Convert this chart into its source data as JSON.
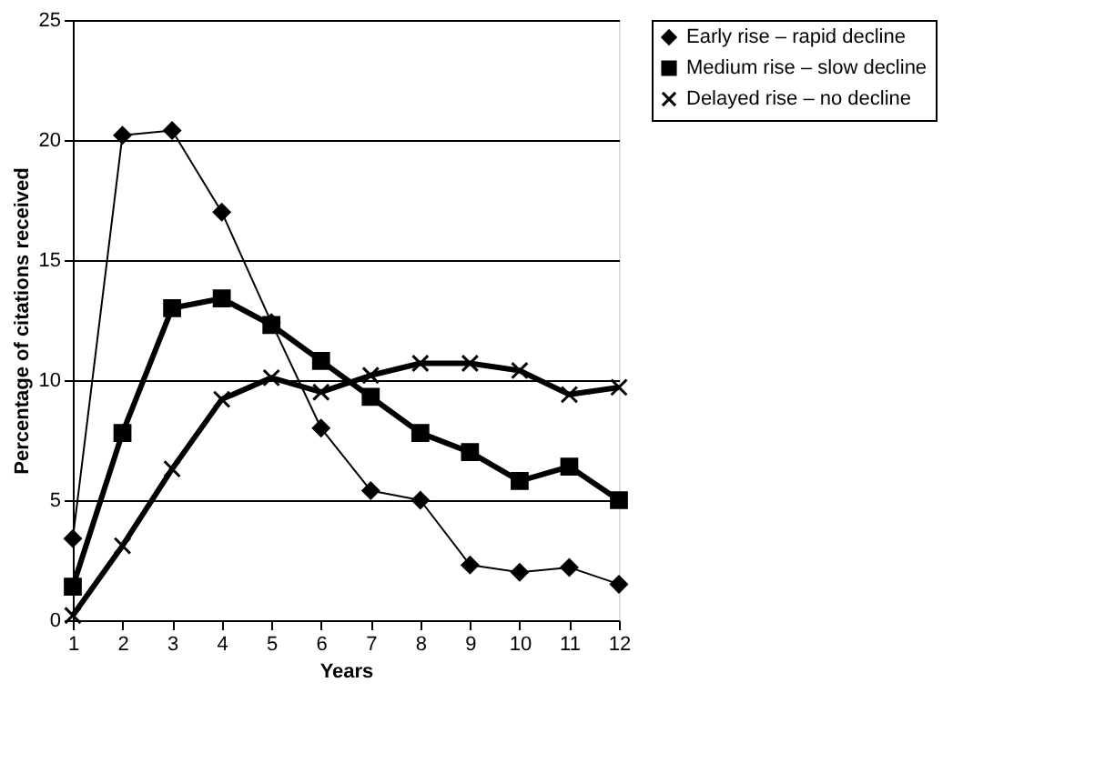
{
  "chart_data": {
    "type": "line",
    "xlabel": "Years",
    "ylabel": "Percentage of citations received",
    "x": [
      1,
      2,
      3,
      4,
      5,
      6,
      7,
      8,
      9,
      10,
      11,
      12
    ],
    "xlim": [
      1,
      12
    ],
    "xticks": [
      1,
      2,
      3,
      4,
      5,
      6,
      7,
      8,
      9,
      10,
      11,
      12
    ],
    "ylim": [
      0,
      25
    ],
    "yticks": [
      0,
      5,
      10,
      15,
      20,
      25
    ],
    "grid": "y",
    "legend": "right",
    "line_style": "solid",
    "series": [
      {
        "name": "Early rise – rapid decline",
        "color": "#000000",
        "marker": "diamond",
        "values": [
          3.4,
          20.2,
          20.4,
          17.0,
          12.4,
          8.0,
          5.4,
          5.0,
          2.3,
          2.0,
          2.2,
          1.5
        ]
      },
      {
        "name": "Medium rise – slow decline",
        "color": "#000000",
        "marker": "square",
        "values": [
          1.4,
          7.8,
          13.0,
          13.4,
          12.3,
          10.8,
          9.3,
          7.8,
          7.0,
          5.8,
          6.4,
          5.0
        ]
      },
      {
        "name": "Delayed rise – no decline",
        "color": "#000000",
        "marker": "cross",
        "values": [
          0.2,
          3.1,
          6.3,
          9.2,
          10.1,
          9.5,
          10.2,
          10.7,
          10.7,
          10.4,
          9.4,
          9.7
        ]
      }
    ]
  }
}
